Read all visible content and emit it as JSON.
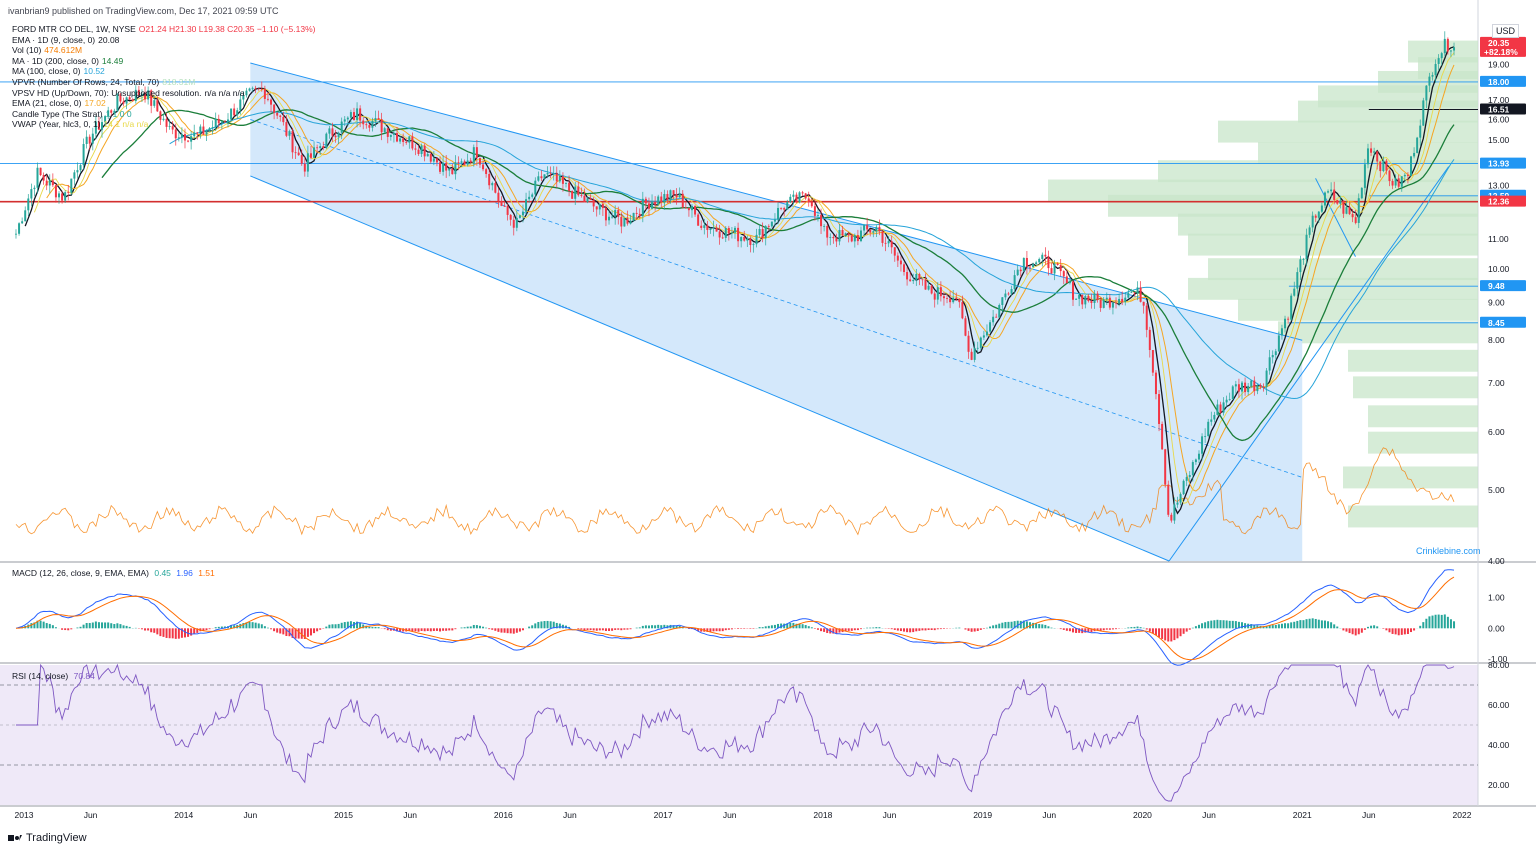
{
  "header": {
    "published": "ivanbrian9 published on TradingView.com, Dec 17, 2021 09:59 UTC"
  },
  "legend": [
    {
      "label": "FORD MTR CO DEL, 1W, NYSE",
      "value": "O21.24  H21.30  L19.38  C20.35  −1.10 (−5.13%)",
      "color": "#f23645"
    },
    {
      "label": "EMA · 1D (9, close, 0)",
      "value": "20.08",
      "color": "#131722"
    },
    {
      "label": "Vol (10)",
      "value": "474.612M",
      "color": "#f57c00"
    },
    {
      "label": "MA · 1D (200, close, 0)",
      "value": "14.49",
      "color": "#1b7e3a"
    },
    {
      "label": "MA (100, close, 0)",
      "value": "10.52",
      "color": "#26a4d9"
    },
    {
      "label": "VPVR (Number Of Rows, 24, Total, 70)",
      "value": "818.31M",
      "color": "#b7e1bf"
    },
    {
      "label": "VPSV HD (Up/Down, 70): Unsupported resolution.",
      "value": "n/a  n/a  n/a",
      "color": "#131722"
    },
    {
      "label": "EMA (21, close, 0)",
      "value": "17.02",
      "color": "#f5a623"
    },
    {
      "label": "Candle Type (The Strat)",
      "value": "1  1  0  0",
      "color": "#26a69a"
    },
    {
      "label": "VWAP (Year, hlc3, 0, 1)",
      "value": "14.1  n/a  n/a",
      "color": "#e8d94a"
    }
  ],
  "macd_legend": {
    "label": "MACD (12, 26, close, 9, EMA, EMA)",
    "values": [
      "0.45",
      "1.96",
      "1.51"
    ]
  },
  "rsi_legend": {
    "label": "RSI (14, close)",
    "value": "70.84"
  },
  "currency": "USD",
  "watermark": "Crinklebine.com",
  "brand": "TradingView",
  "colors": {
    "up": "#26a69a",
    "down": "#f23645",
    "channel": "#cfe5fb",
    "rsi_bg": "#efe9f8"
  },
  "chart_data": [
    {
      "type": "line",
      "title": "FORD MTR CO DEL, 1W, NYSE",
      "x": [
        "2013-01",
        "2013-06",
        "2014-01",
        "2014-06",
        "2015-01",
        "2015-06",
        "2016-01",
        "2016-06",
        "2017-01",
        "2017-06",
        "2018-01",
        "2018-06",
        "2019-01",
        "2019-06",
        "2020-01",
        "2020-06",
        "2021-01",
        "2021-06",
        "2022-01"
      ],
      "x_tick_labels": [
        "2013",
        "Jun",
        "2014",
        "Jun",
        "2015",
        "Jun",
        "2016",
        "Jun",
        "2017",
        "Jun",
        "2018",
        "Jun",
        "2019",
        "Jun",
        "2020",
        "Jun",
        "2021",
        "Jun",
        "2022"
      ],
      "y_ticks": [
        4.0,
        5.0,
        6.0,
        7.0,
        8.0,
        9.0,
        10.0,
        11.0,
        13.0,
        15.0,
        16.0,
        17.0,
        19.0
      ],
      "ylim": [
        4.0,
        22.0
      ],
      "y_scale": "log",
      "series": [
        {
          "name": "FORD MTR CO DEL",
          "points": [
            [
              "2012-12",
              10.6
            ],
            [
              "2013-02",
              13.5
            ],
            [
              "2013-04",
              12.5
            ],
            [
              "2013-06",
              15.2
            ],
            [
              "2013-08",
              16.9
            ],
            [
              "2013-10",
              17.5
            ],
            [
              "2013-12",
              15.4
            ],
            [
              "2014-02",
              15.2
            ],
            [
              "2014-04",
              16.0
            ],
            [
              "2014-06",
              17.3
            ],
            [
              "2014-07",
              17.6
            ],
            [
              "2014-09",
              15.0
            ],
            [
              "2014-10",
              13.8
            ],
            [
              "2014-12",
              15.3
            ],
            [
              "2015-02",
              16.3
            ],
            [
              "2015-04",
              15.6
            ],
            [
              "2015-07",
              14.6
            ],
            [
              "2015-09",
              13.5
            ],
            [
              "2015-11",
              14.5
            ],
            [
              "2016-01",
              12.0
            ],
            [
              "2016-02",
              11.5
            ],
            [
              "2016-04",
              13.5
            ],
            [
              "2016-06",
              12.8
            ],
            [
              "2016-08",
              12.1
            ],
            [
              "2016-10",
              11.6
            ],
            [
              "2016-12",
              12.4
            ],
            [
              "2017-02",
              12.6
            ],
            [
              "2017-04",
              11.5
            ],
            [
              "2017-06",
              11.2
            ],
            [
              "2017-08",
              11.0
            ],
            [
              "2017-10",
              12.2
            ],
            [
              "2017-12",
              12.6
            ],
            [
              "2018-01",
              11.2
            ],
            [
              "2018-03",
              11.0
            ],
            [
              "2018-05",
              11.4
            ],
            [
              "2018-07",
              10.0
            ],
            [
              "2018-09",
              9.3
            ],
            [
              "2018-11",
              9.2
            ],
            [
              "2018-12",
              7.6
            ],
            [
              "2019-02",
              8.7
            ],
            [
              "2019-04",
              10.3
            ],
            [
              "2019-06",
              10.2
            ],
            [
              "2019-08",
              9.2
            ],
            [
              "2019-10",
              9.0
            ],
            [
              "2019-12",
              9.3
            ],
            [
              "2020-01",
              9.2
            ],
            [
              "2020-03",
              4.5
            ],
            [
              "2020-05",
              5.5
            ],
            [
              "2020-06",
              6.2
            ],
            [
              "2020-08",
              6.9
            ],
            [
              "2020-10",
              7.0
            ],
            [
              "2020-12",
              8.8
            ],
            [
              "2021-01",
              10.4
            ],
            [
              "2021-02",
              11.9
            ],
            [
              "2021-03",
              12.7
            ],
            [
              "2021-05",
              11.6
            ],
            [
              "2021-06",
              14.9
            ],
            [
              "2021-07",
              13.8
            ],
            [
              "2021-08",
              13.0
            ],
            [
              "2021-09",
              13.5
            ],
            [
              "2021-10",
              16.5
            ],
            [
              "2021-11",
              19.5
            ],
            [
              "2021-12",
              20.35
            ]
          ]
        }
      ],
      "price_labels": [
        {
          "value": "20.35",
          "sub": "+82.18%",
          "color": "#f23645"
        },
        {
          "value": "18.00",
          "color": "#2196f3"
        },
        {
          "value": "16.51",
          "color": "#131722"
        },
        {
          "value": "13.93",
          "color": "#2196f3"
        },
        {
          "value": "12.59",
          "color": "#2196f3"
        },
        {
          "value": "12.36",
          "color": "#f23645"
        },
        {
          "value": "9.48",
          "color": "#2196f3"
        },
        {
          "value": "8.45",
          "color": "#2196f3"
        }
      ]
    },
    {
      "type": "bar",
      "title": "MACD (12, 26, close, 9, EMA, EMA)",
      "y_ticks": [
        1.0,
        0.0,
        -1.0
      ],
      "ylim": [
        -1.1,
        2.1
      ]
    },
    {
      "type": "line",
      "title": "RSI (14, close)",
      "y_ticks": [
        80.0,
        60.0,
        40.0,
        20.0
      ],
      "ylim": [
        10,
        80
      ]
    }
  ]
}
